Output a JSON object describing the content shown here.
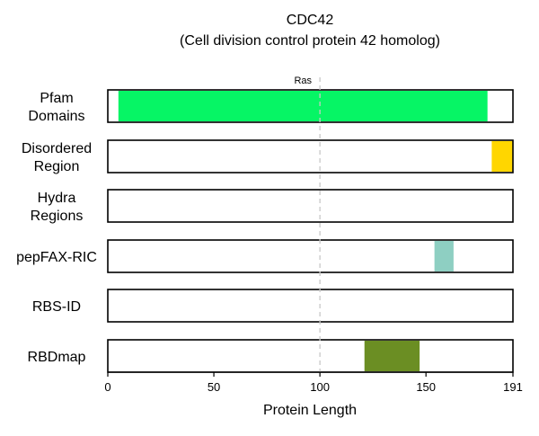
{
  "chart_data": {
    "type": "bar",
    "title": "CDC42",
    "subtitle": "(Cell division control protein 42 homolog)",
    "xlabel": "Protein Length",
    "xlim": [
      0,
      191
    ],
    "xticks": [
      0,
      50,
      100,
      150,
      191
    ],
    "reference_line": 100,
    "rows": [
      {
        "label": [
          "Pfam",
          "Domains"
        ],
        "segments": [
          {
            "start": 5,
            "end": 179,
            "color": "#06f565",
            "label": "Ras"
          }
        ]
      },
      {
        "label": [
          "Disordered",
          "Region"
        ],
        "segments": [
          {
            "start": 181,
            "end": 191,
            "color": "#ffd600"
          }
        ]
      },
      {
        "label": [
          "Hydra",
          "Regions"
        ],
        "segments": []
      },
      {
        "label": [
          "pepFAX-RIC"
        ],
        "segments": [
          {
            "start": 154,
            "end": 163,
            "color": "#8ecfc2"
          }
        ]
      },
      {
        "label": [
          "RBS-ID"
        ],
        "segments": []
      },
      {
        "label": [
          "RBDmap"
        ],
        "segments": [
          {
            "start": 121,
            "end": 147,
            "color": "#6b8e23"
          }
        ]
      }
    ]
  }
}
